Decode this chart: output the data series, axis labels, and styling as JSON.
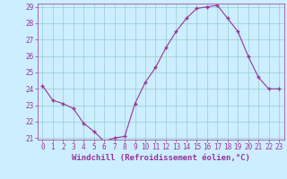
{
  "x": [
    0,
    1,
    2,
    3,
    4,
    5,
    6,
    7,
    8,
    9,
    10,
    11,
    12,
    13,
    14,
    15,
    16,
    17,
    18,
    19,
    20,
    21,
    22,
    23
  ],
  "y": [
    24.2,
    23.3,
    23.1,
    22.8,
    21.9,
    21.4,
    20.8,
    21.0,
    21.1,
    23.1,
    24.4,
    25.3,
    26.5,
    27.5,
    28.3,
    28.9,
    29.0,
    29.1,
    28.3,
    27.5,
    26.0,
    24.7,
    24.0,
    24.0
  ],
  "line_color": "#993399",
  "marker": "+",
  "marker_size": 3,
  "bg_color": "#cceeff",
  "grid_color": "#99cccc",
  "tick_color": "#993399",
  "label_color": "#993399",
  "xlabel": "Windchill (Refroidissement éolien,°C)",
  "ylim": [
    21,
    29
  ],
  "xlim": [
    -0.5,
    23.5
  ],
  "yticks": [
    21,
    22,
    23,
    24,
    25,
    26,
    27,
    28,
    29
  ],
  "xticks": [
    0,
    1,
    2,
    3,
    4,
    5,
    6,
    7,
    8,
    9,
    10,
    11,
    12,
    13,
    14,
    15,
    16,
    17,
    18,
    19,
    20,
    21,
    22,
    23
  ],
  "font_size": 5.5,
  "label_font_size": 6.5
}
